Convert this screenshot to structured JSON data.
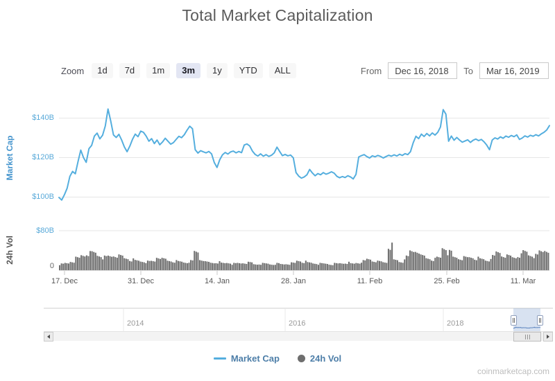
{
  "title": "Total Market Capitalization",
  "watermark": "coinmarketcap.com",
  "toolbar": {
    "zoom_label": "Zoom",
    "zoom_buttons": [
      {
        "label": "1d",
        "selected": false
      },
      {
        "label": "7d",
        "selected": false
      },
      {
        "label": "1m",
        "selected": false
      },
      {
        "label": "3m",
        "selected": true
      },
      {
        "label": "1y",
        "selected": false
      },
      {
        "label": "YTD",
        "selected": false
      },
      {
        "label": "ALL",
        "selected": false
      }
    ],
    "from_label": "From",
    "from_value": "Dec 16, 2018",
    "to_label": "To",
    "to_value": "Mar 16, 2019"
  },
  "legend": {
    "items": [
      {
        "label": "Market Cap",
        "marker": "line",
        "color": "#54aede"
      },
      {
        "label": "24h Vol",
        "marker": "circle",
        "color": "#6e6e6e"
      }
    ]
  },
  "navigator": {
    "year_labels": [
      "2014",
      "2016",
      "2018"
    ],
    "selected_window": "Dec 16, 2018 - Mar 16, 2019"
  },
  "colors": {
    "market_cap_line": "#54aede",
    "volume_bar": "#6f6f6f",
    "axis_label_blue": "#58a9d9",
    "axis_title_blue": "#4494cd",
    "selected_button_bg": "#e3e6f3",
    "legend_text": "#4d7ea8",
    "navigator_selection": "#cfdcef",
    "navigator_series": "#4f7ab8",
    "gridline": "#e6e6e6"
  },
  "chart_data": [
    {
      "type": "line",
      "title": "Market Cap",
      "ylabel": "Market Cap",
      "unit": "$B",
      "x_start": "Dec 16, 2018",
      "x_end": "Mar 16, 2019",
      "resolution": "2 points per day",
      "xticks": [
        "17. Dec",
        "31. Dec",
        "14. Jan",
        "28. Jan",
        "11. Feb",
        "25. Feb",
        "11. Mar"
      ],
      "yticks": [
        "$140B",
        "$120B",
        "$100B"
      ],
      "ylim": [
        93,
        146
      ],
      "grid": true,
      "legend_position": "bottom",
      "values": [
        99.8,
        98.5,
        101.2,
        104.5,
        110.5,
        113.0,
        111.8,
        118.0,
        123.8,
        120.0,
        117.6,
        124.5,
        126.2,
        130.9,
        132.4,
        129.5,
        131.3,
        136.0,
        144.6,
        138.5,
        131.5,
        130.2,
        131.8,
        128.9,
        125.4,
        123.0,
        125.8,
        129.3,
        131.9,
        130.6,
        133.4,
        132.8,
        130.9,
        128.3,
        129.6,
        127.1,
        128.9,
        126.5,
        127.9,
        129.8,
        128.3,
        126.8,
        127.6,
        129.2,
        130.8,
        130.1,
        131.6,
        133.9,
        135.9,
        134.6,
        124.0,
        122.3,
        123.5,
        122.9,
        122.4,
        123.1,
        121.9,
        117.5,
        115.0,
        118.9,
        121.4,
        122.6,
        121.8,
        122.9,
        123.3,
        122.4,
        123.1,
        122.5,
        126.4,
        126.9,
        125.9,
        123.3,
        121.6,
        120.8,
        121.9,
        120.7,
        121.5,
        120.6,
        121.2,
        122.4,
        125.3,
        123.1,
        121.0,
        121.6,
        120.9,
        121.3,
        119.9,
        112.4,
        110.6,
        109.6,
        110.2,
        111.3,
        114.0,
        112.2,
        110.8,
        111.9,
        111.3,
        112.4,
        111.6,
        112.1,
        112.8,
        112.1,
        110.5,
        109.8,
        110.4,
        109.9,
        110.8,
        110.2,
        109.2,
        111.5,
        120.3,
        121.0,
        121.5,
        120.5,
        119.8,
        120.9,
        120.4,
        121.1,
        120.6,
        119.8,
        120.5,
        121.2,
        120.7,
        121.4,
        120.8,
        121.7,
        121.1,
        122.0,
        121.5,
        123.0,
        127.5,
        130.8,
        129.6,
        131.9,
        130.7,
        132.2,
        131.0,
        132.5,
        131.4,
        132.8,
        135.5,
        144.3,
        142.0,
        128.3,
        130.9,
        128.8,
        130.2,
        128.9,
        127.8,
        128.4,
        129.0,
        127.7,
        128.8,
        129.4,
        128.6,
        129.2,
        128.0,
        126.3,
        124.0,
        128.9,
        130.0,
        129.4,
        130.5,
        129.8,
        130.9,
        130.3,
        131.2,
        130.6,
        131.5,
        129.2,
        129.9,
        131.0,
        130.4,
        131.3,
        130.8,
        131.6,
        131.0,
        132.0,
        132.8,
        134.0,
        136.2
      ]
    },
    {
      "type": "bar",
      "title": "24h Vol",
      "ylabel": "24h Vol",
      "unit": "$B",
      "x_start": "Dec 16, 2018",
      "x_end": "Mar 16, 2019",
      "resolution": "1 bar per day",
      "yticks": [
        "$80B",
        "0"
      ],
      "ylim": [
        0,
        80
      ],
      "grid": true,
      "values": [
        12,
        14,
        18,
        24,
        30,
        34,
        35,
        30,
        26,
        28,
        30,
        28,
        24,
        21,
        19,
        18,
        17,
        18,
        27,
        22,
        19,
        18,
        17,
        16,
        18,
        37,
        22,
        16,
        15,
        16,
        14,
        15,
        13,
        14,
        15,
        15,
        12,
        13,
        13,
        12,
        13,
        12,
        13,
        14,
        19,
        17,
        15,
        14,
        13,
        13,
        12,
        13,
        14,
        15,
        13,
        15,
        18,
        22,
        19,
        17,
        16,
        49,
        20,
        17,
        26,
        38,
        40,
        28,
        24,
        22,
        25,
        46,
        36,
        26,
        24,
        25,
        26,
        24,
        22,
        20,
        27,
        36,
        30,
        28,
        26,
        30,
        37,
        31,
        29,
        38,
        42
      ]
    }
  ]
}
